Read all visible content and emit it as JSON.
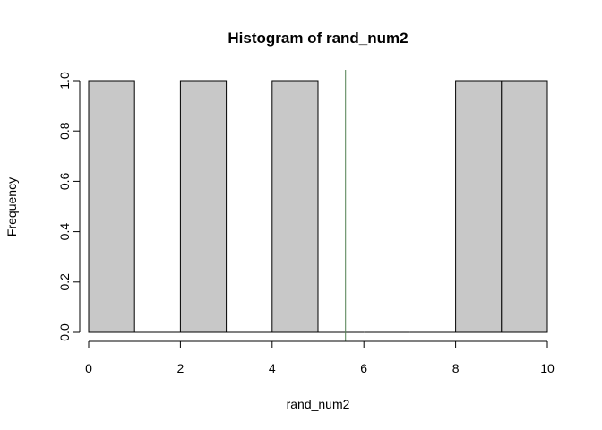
{
  "chart_data": {
    "type": "bar",
    "title": "Histogram of rand_num2",
    "xlabel": "rand_num2",
    "ylabel": "Frequency",
    "bins": [
      {
        "start": 0,
        "end": 1,
        "count": 1
      },
      {
        "start": 1,
        "end": 2,
        "count": 0
      },
      {
        "start": 2,
        "end": 3,
        "count": 1
      },
      {
        "start": 3,
        "end": 4,
        "count": 0
      },
      {
        "start": 4,
        "end": 5,
        "count": 1
      },
      {
        "start": 5,
        "end": 6,
        "count": 0
      },
      {
        "start": 6,
        "end": 7,
        "count": 0
      },
      {
        "start": 7,
        "end": 8,
        "count": 0
      },
      {
        "start": 8,
        "end": 9,
        "count": 1
      },
      {
        "start": 9,
        "end": 10,
        "count": 1
      }
    ],
    "xlim": [
      0,
      10
    ],
    "ylim": [
      0,
      1
    ],
    "x_ticks": [
      0,
      2,
      4,
      6,
      8,
      10
    ],
    "x_tick_labels": [
      "0",
      "2",
      "4",
      "6",
      "8",
      "10"
    ],
    "y_ticks": [
      0,
      0.2,
      0.4,
      0.6,
      0.8,
      1.0
    ],
    "y_tick_labels": [
      "0.0",
      "0.2",
      "0.4",
      "0.6",
      "0.8",
      "1.0"
    ],
    "vline": {
      "x": 5.6,
      "color": "#4f7f4f"
    },
    "bar_fill": "#c8c8c8",
    "bar_stroke": "#000000",
    "grid": false,
    "legend": "none"
  }
}
